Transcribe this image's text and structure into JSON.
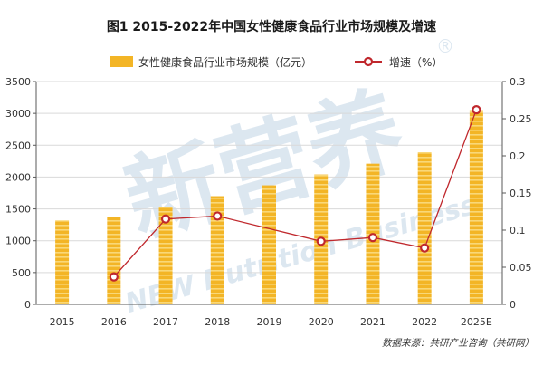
{
  "chart_data": {
    "type": "bar",
    "title": "图1 2015-2022年中国女性健康食品行业市场规模及增速",
    "categories": [
      "2015",
      "2016",
      "2017",
      "2018",
      "2019",
      "2020",
      "2021",
      "2022",
      "2025E"
    ],
    "series": [
      {
        "name": "女性健康食品行业市场规模（亿元）",
        "type": "bar",
        "axis": "left",
        "values": [
          1320,
          1370,
          1530,
          1700,
          1870,
          2040,
          2210,
          2390,
          3050
        ]
      },
      {
        "name": "增速（%）",
        "type": "line",
        "axis": "right",
        "values": [
          null,
          0.037,
          0.115,
          0.119,
          null,
          0.085,
          0.09,
          0.076,
          0.262
        ]
      }
    ],
    "y_left": {
      "lim": [
        0,
        3500
      ],
      "ticks": [
        0,
        500,
        1000,
        1500,
        2000,
        2500,
        3000,
        3500
      ]
    },
    "y_right": {
      "lim": [
        0,
        0.3
      ],
      "ticks": [
        "0",
        "0.05",
        "0.1",
        "0.15",
        "0.2",
        "0.25",
        "0.3"
      ]
    },
    "grid": true,
    "legend_position": "top-center",
    "colors": {
      "bar": "#f3b526",
      "bar_stripe": "#fbe08c",
      "line": "#c0282d",
      "marker_fill": "#ffffff",
      "grid": "#d9d9d9",
      "axis": "#595959"
    }
  },
  "source": "数据来源：共研产业咨询（共研网）",
  "watermark": {
    "main": "新营养",
    "sub": "NEW Nutrition Business",
    "mark": "®"
  }
}
